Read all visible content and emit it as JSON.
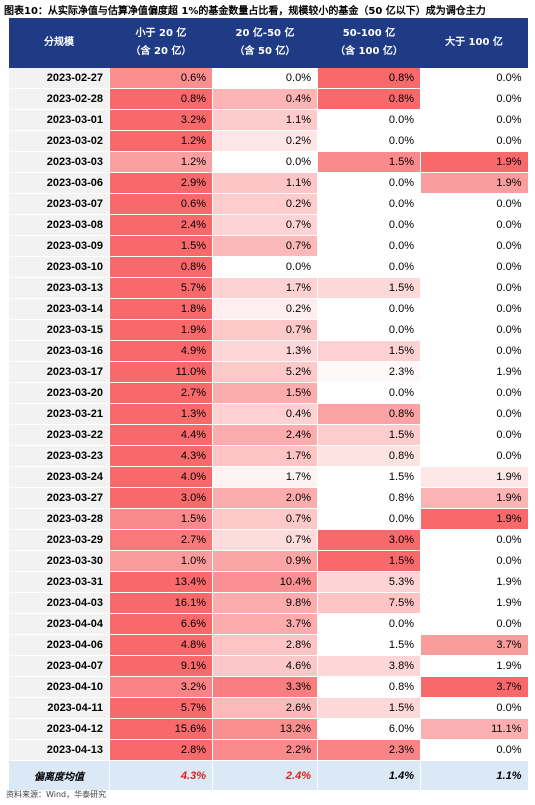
{
  "header": {
    "title": "图表10：从实际净值与估算净值偏度超 1%的基金数量占比看，规模较小的基金（50 亿以下）成为调仓主力"
  },
  "table": {
    "columns": [
      [
        "分规模"
      ],
      [
        "小于 20 亿",
        "（含 20 亿）"
      ],
      [
        "20 亿-50 亿",
        "（含 50 亿）"
      ],
      [
        "50-100 亿",
        "（含 100 亿）"
      ],
      [
        "大于 100 亿"
      ]
    ],
    "rows": [
      [
        "2023-02-27",
        "0.6%",
        "0.0%",
        "0.8%",
        "0.0%"
      ],
      [
        "2023-02-28",
        "0.8%",
        "0.4%",
        "0.8%",
        "0.0%"
      ],
      [
        "2023-03-01",
        "3.2%",
        "1.1%",
        "0.0%",
        "0.0%"
      ],
      [
        "2023-03-02",
        "1.2%",
        "0.2%",
        "0.0%",
        "0.0%"
      ],
      [
        "2023-03-03",
        "1.2%",
        "0.0%",
        "1.5%",
        "1.9%"
      ],
      [
        "2023-03-06",
        "2.9%",
        "1.1%",
        "0.0%",
        "1.9%"
      ],
      [
        "2023-03-07",
        "0.6%",
        "0.2%",
        "0.0%",
        "0.0%"
      ],
      [
        "2023-03-08",
        "2.4%",
        "0.7%",
        "0.0%",
        "0.0%"
      ],
      [
        "2023-03-09",
        "1.5%",
        "0.7%",
        "0.0%",
        "0.0%"
      ],
      [
        "2023-03-10",
        "0.8%",
        "0.0%",
        "0.0%",
        "0.0%"
      ],
      [
        "2023-03-13",
        "5.7%",
        "1.7%",
        "1.5%",
        "0.0%"
      ],
      [
        "2023-03-14",
        "1.8%",
        "0.2%",
        "0.0%",
        "0.0%"
      ],
      [
        "2023-03-15",
        "1.9%",
        "0.7%",
        "0.0%",
        "0.0%"
      ],
      [
        "2023-03-16",
        "4.9%",
        "1.3%",
        "1.5%",
        "0.0%"
      ],
      [
        "2023-03-17",
        "11.0%",
        "5.2%",
        "2.3%",
        "1.9%"
      ],
      [
        "2023-03-20",
        "2.7%",
        "1.5%",
        "0.0%",
        "0.0%"
      ],
      [
        "2023-03-21",
        "1.3%",
        "0.4%",
        "0.8%",
        "0.0%"
      ],
      [
        "2023-03-22",
        "4.4%",
        "2.4%",
        "1.5%",
        "0.0%"
      ],
      [
        "2023-03-23",
        "4.3%",
        "1.7%",
        "0.8%",
        "0.0%"
      ],
      [
        "2023-03-24",
        "4.0%",
        "1.7%",
        "1.5%",
        "1.9%"
      ],
      [
        "2023-03-27",
        "3.0%",
        "2.0%",
        "0.8%",
        "1.9%"
      ],
      [
        "2023-03-28",
        "1.5%",
        "0.7%",
        "0.0%",
        "1.9%"
      ],
      [
        "2023-03-29",
        "2.7%",
        "0.7%",
        "3.0%",
        "0.0%"
      ],
      [
        "2023-03-30",
        "1.0%",
        "0.9%",
        "1.5%",
        "0.0%"
      ],
      [
        "2023-03-31",
        "13.4%",
        "10.4%",
        "5.3%",
        "1.9%"
      ],
      [
        "2023-04-03",
        "16.1%",
        "9.8%",
        "7.5%",
        "1.9%"
      ],
      [
        "2023-04-04",
        "6.6%",
        "3.7%",
        "0.0%",
        "0.0%"
      ],
      [
        "2023-04-06",
        "4.8%",
        "2.8%",
        "1.5%",
        "3.7%"
      ],
      [
        "2023-04-07",
        "9.1%",
        "4.6%",
        "3.8%",
        "1.9%"
      ],
      [
        "2023-04-10",
        "3.2%",
        "3.3%",
        "0.8%",
        "3.7%"
      ],
      [
        "2023-04-11",
        "5.7%",
        "2.6%",
        "1.5%",
        "0.0%"
      ],
      [
        "2023-04-12",
        "15.6%",
        "13.2%",
        "6.0%",
        "11.1%"
      ],
      [
        "2023-04-13",
        "2.8%",
        "2.2%",
        "2.3%",
        "0.0%"
      ]
    ],
    "average": [
      "偏离度均值",
      "4.3%",
      "2.4%",
      "1.4%",
      "1.1%"
    ],
    "average_colors": [
      "#000000",
      "#e0201b",
      "#e0201b",
      "#000000",
      "#000000"
    ]
  },
  "footer": {
    "source": "资料来源：Wind，华泰研究"
  }
}
